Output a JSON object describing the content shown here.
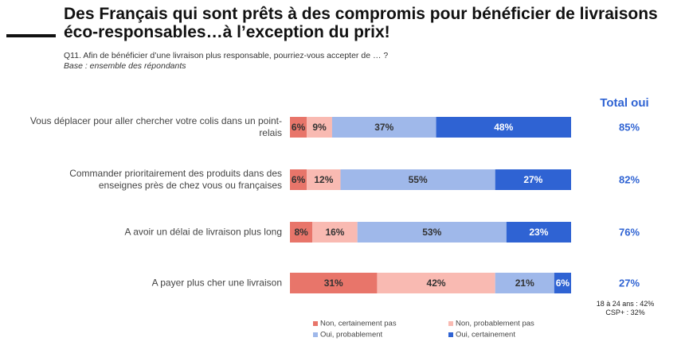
{
  "chart_data": {
    "type": "stacked_bar_horizontal",
    "title": "Des Français qui sont prêts à des compromis pour bénéficier de livraisons éco-responsables…à l’exception du prix!",
    "subtitle": "Q11. Afin de bénéficier d’une livraison plus responsable, pourriez-vous accepter de … ?",
    "base": "Base : ensemble des répondants",
    "categories": [
      "Vous déplacer pour aller chercher votre colis dans un point-relais",
      "Commander prioritairement des produits dans des enseignes près de chez vous ou françaises",
      "A avoir un délai de livraison plus long",
      "A payer plus cher une livraison"
    ],
    "xlim": [
      0,
      100
    ],
    "series": [
      {
        "name": "Non, certainement pas",
        "color": "#e8756a",
        "values": [
          6,
          6,
          8,
          31
        ],
        "value_labels": [
          "6%",
          "6%",
          "8%",
          "31%"
        ]
      },
      {
        "name": "Non, probablement pas",
        "color": "#f9bab2",
        "values": [
          9,
          12,
          16,
          42
        ],
        "value_labels": [
          "9%",
          "12%",
          "16%",
          "42%"
        ]
      },
      {
        "name": "Oui, probablement",
        "color": "#9fb8ea",
        "values": [
          37,
          55,
          53,
          21
        ],
        "value_labels": [
          "37%",
          "55%",
          "53%",
          "21%"
        ]
      },
      {
        "name": "Oui, certainement",
        "color": "#2f63d3",
        "values": [
          48,
          27,
          23,
          6
        ],
        "value_labels": [
          "48%",
          "27%",
          "23%",
          "6%"
        ]
      }
    ],
    "total": {
      "title": "Total oui",
      "color": "#2f63d3",
      "values": [
        85,
        82,
        76,
        27
      ],
      "value_labels": [
        "85%",
        "82%",
        "76%",
        "27%"
      ]
    },
    "annotations": [
      "18 à 24 ans : 42%",
      "CSP+ : 32%"
    ],
    "legend": "bottom"
  }
}
